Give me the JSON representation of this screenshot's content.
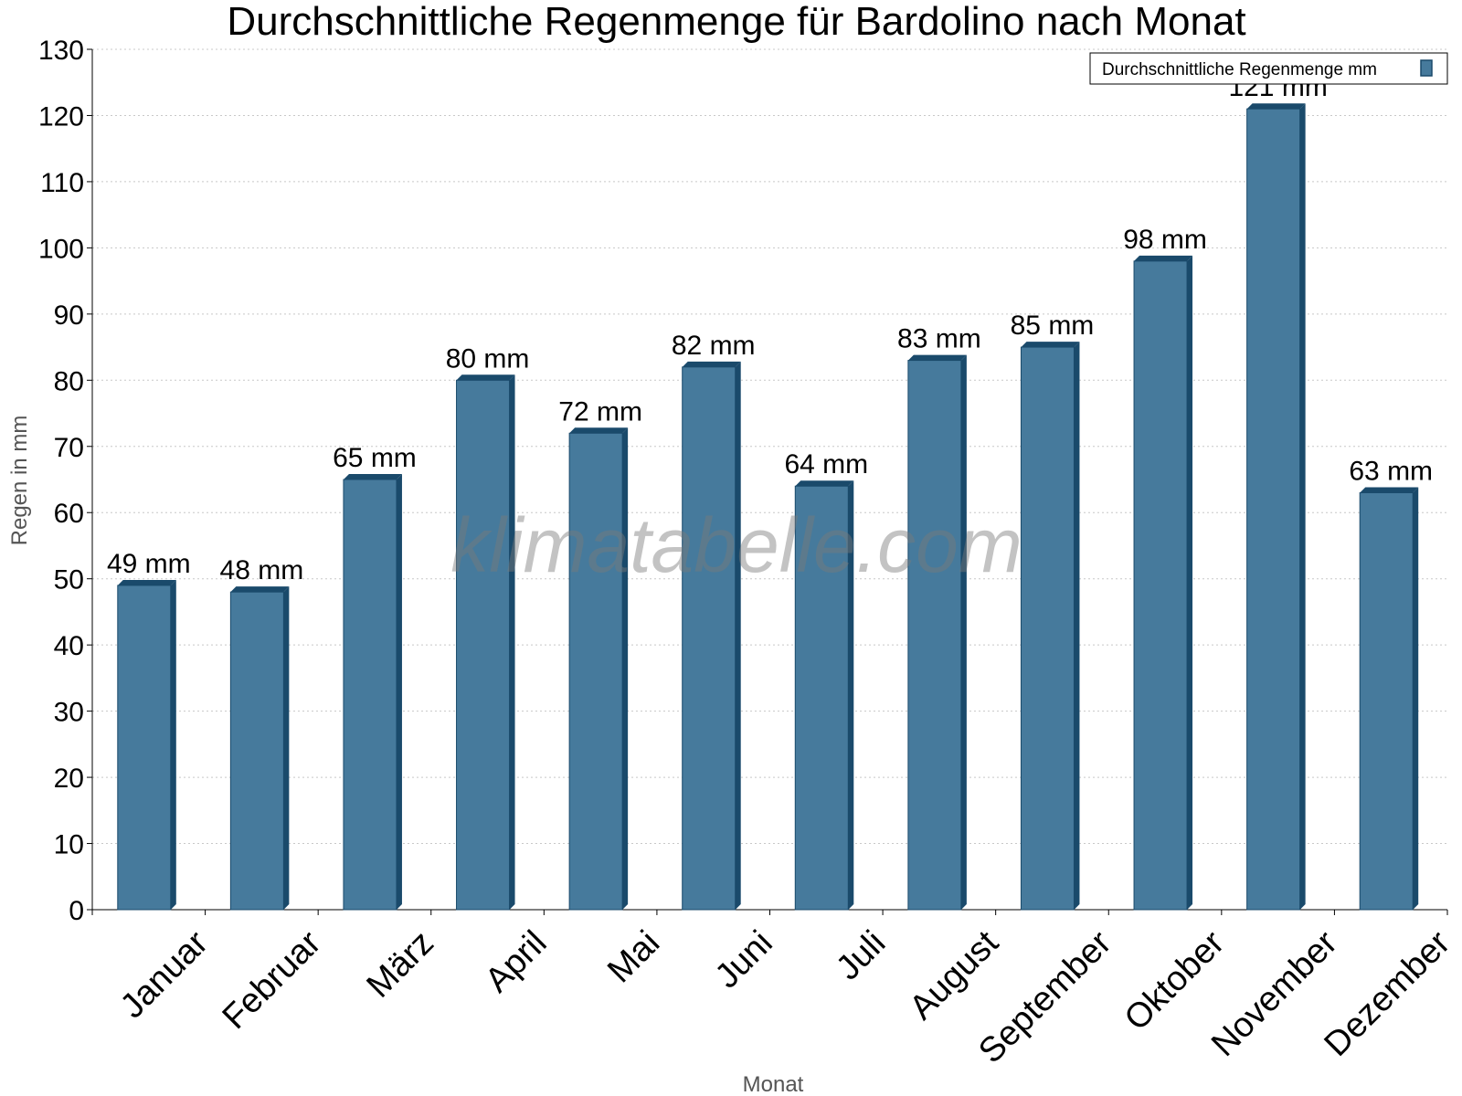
{
  "watermark": "klimatabelle.com",
  "chart_data": {
    "type": "bar",
    "title": "Durchschnittliche Regenmenge für Bardolino nach Monat",
    "xlabel": "Monat",
    "ylabel": "Regen in mm",
    "ylim": [
      0,
      130
    ],
    "yticks": [
      0,
      10,
      20,
      30,
      40,
      50,
      60,
      70,
      80,
      90,
      100,
      110,
      120,
      130
    ],
    "grid": true,
    "legend_position": "top-right",
    "categories": [
      "Januar",
      "Februar",
      "März",
      "April",
      "Mai",
      "Juni",
      "Juli",
      "August",
      "September",
      "Oktober",
      "November",
      "Dezember"
    ],
    "series": [
      {
        "name": "Durchschnittliche Regenmenge mm",
        "values": [
          49,
          48,
          65,
          80,
          72,
          82,
          64,
          83,
          85,
          98,
          121,
          63
        ],
        "labels": [
          "49 mm",
          "48 mm",
          "65 mm",
          "80 mm",
          "72 mm",
          "82 mm",
          "64 mm",
          "83 mm",
          "85 mm",
          "98 mm",
          "121 mm",
          "63 mm"
        ],
        "color": "#467a9c",
        "edge_color": "#1a4a6b"
      }
    ]
  }
}
